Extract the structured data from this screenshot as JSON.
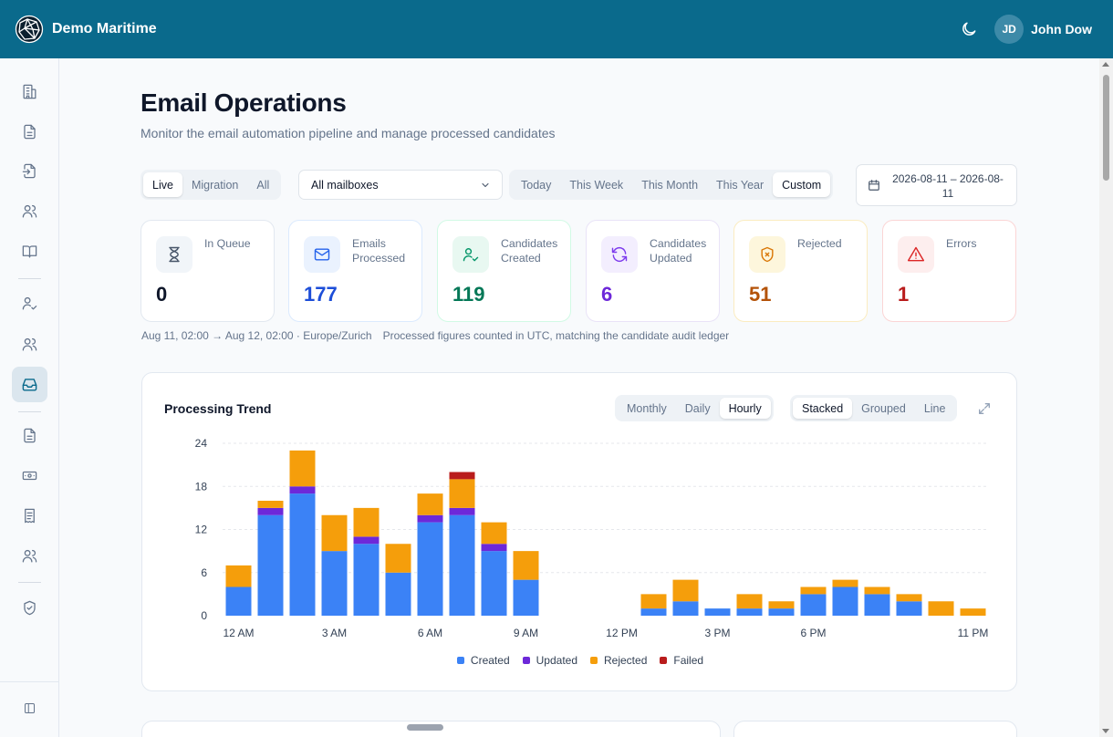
{
  "app": {
    "name": "Demo Maritime"
  },
  "user": {
    "initials": "JD",
    "name": "John Dow"
  },
  "page": {
    "title": "Email Operations",
    "subtitle": "Monitor the email automation pipeline and manage processed candidates"
  },
  "filters": {
    "modes": [
      "Live",
      "Migration",
      "All"
    ],
    "mode_selected": "Live",
    "mailbox": "All mailboxes",
    "ranges": [
      "Today",
      "This Week",
      "This Month",
      "This Year",
      "Custom"
    ],
    "range_selected": "Custom",
    "date_range": "2026-08-11 – 2026-08-11"
  },
  "stats": [
    {
      "label": "In Queue",
      "value": "0",
      "icon": "hourglass-icon",
      "color": "#0f172a",
      "bg": "#f1f5f9",
      "border": "#e2e8f0"
    },
    {
      "label": "Emails Processed",
      "value": "177",
      "icon": "mail-icon",
      "color": "#1d4ed8",
      "bg": "#eaf2fe",
      "border": "#dbeafe"
    },
    {
      "label": "Candidates Created",
      "value": "119",
      "icon": "user-check-icon",
      "color": "#047857",
      "bg": "#e8f8f1",
      "border": "#d1fae5"
    },
    {
      "label": "Candidates Updated",
      "value": "6",
      "icon": "refresh-icon",
      "color": "#6d28d9",
      "bg": "#f3eefe",
      "border": "#e9e3f7"
    },
    {
      "label": "Rejected",
      "value": "51",
      "icon": "shield-x-icon",
      "color": "#b45309",
      "bg": "#fdf6dc",
      "border": "#fbecc0"
    },
    {
      "label": "Errors",
      "value": "1",
      "icon": "alert-triangle-icon",
      "color": "#b91c1c",
      "bg": "#fdeeee",
      "border": "#fbd5d5"
    }
  ],
  "meta": {
    "range": "Aug 11, 02:00 → Aug 12, 02:00 · Europe/Zurich",
    "note": "Processed figures counted in UTC, matching the candidate audit ledger"
  },
  "trend": {
    "title": "Processing Trend",
    "granularity": [
      "Monthly",
      "Daily",
      "Hourly"
    ],
    "granularity_selected": "Hourly",
    "modes": [
      "Stacked",
      "Grouped",
      "Line"
    ],
    "mode_selected": "Stacked"
  },
  "chart_data": {
    "type": "bar",
    "stacked": true,
    "categories": [
      "12 AM",
      "1 AM",
      "2 AM",
      "3 AM",
      "4 AM",
      "5 AM",
      "6 AM",
      "7 AM",
      "8 AM",
      "9 AM",
      "10 AM",
      "11 AM",
      "12 PM",
      "1 PM",
      "2 PM",
      "3 PM",
      "4 PM",
      "5 PM",
      "6 PM",
      "7 PM",
      "8 PM",
      "9 PM",
      "10 PM",
      "11 PM"
    ],
    "tick_labels": [
      "12 AM",
      "3 AM",
      "6 AM",
      "9 AM",
      "12 PM",
      "3 PM",
      "6 PM",
      "11 PM"
    ],
    "series": [
      {
        "name": "Created",
        "color": "#3b82f6",
        "values": [
          4,
          14,
          17,
          9,
          10,
          6,
          13,
          14,
          9,
          5,
          0,
          0,
          0,
          1,
          2,
          1,
          1,
          1,
          3,
          4,
          3,
          2,
          0,
          0
        ]
      },
      {
        "name": "Updated",
        "color": "#6d28d9",
        "values": [
          0,
          1,
          1,
          0,
          1,
          0,
          1,
          1,
          1,
          0,
          0,
          0,
          0,
          0,
          0,
          0,
          0,
          0,
          0,
          0,
          0,
          0,
          0,
          0
        ]
      },
      {
        "name": "Rejected",
        "color": "#f59e0b",
        "values": [
          3,
          1,
          5,
          5,
          4,
          4,
          3,
          4,
          3,
          4,
          0,
          0,
          0,
          2,
          3,
          0,
          2,
          1,
          1,
          1,
          1,
          1,
          2,
          1
        ]
      },
      {
        "name": "Failed",
        "color": "#b91c1c",
        "values": [
          0,
          0,
          0,
          0,
          0,
          0,
          0,
          1,
          0,
          0,
          0,
          0,
          0,
          0,
          0,
          0,
          0,
          0,
          0,
          0,
          0,
          0,
          0,
          0
        ]
      }
    ],
    "yticks": [
      0,
      6,
      12,
      18,
      24
    ],
    "ylim": [
      0,
      24
    ],
    "grid": true,
    "legend": "bottom"
  }
}
